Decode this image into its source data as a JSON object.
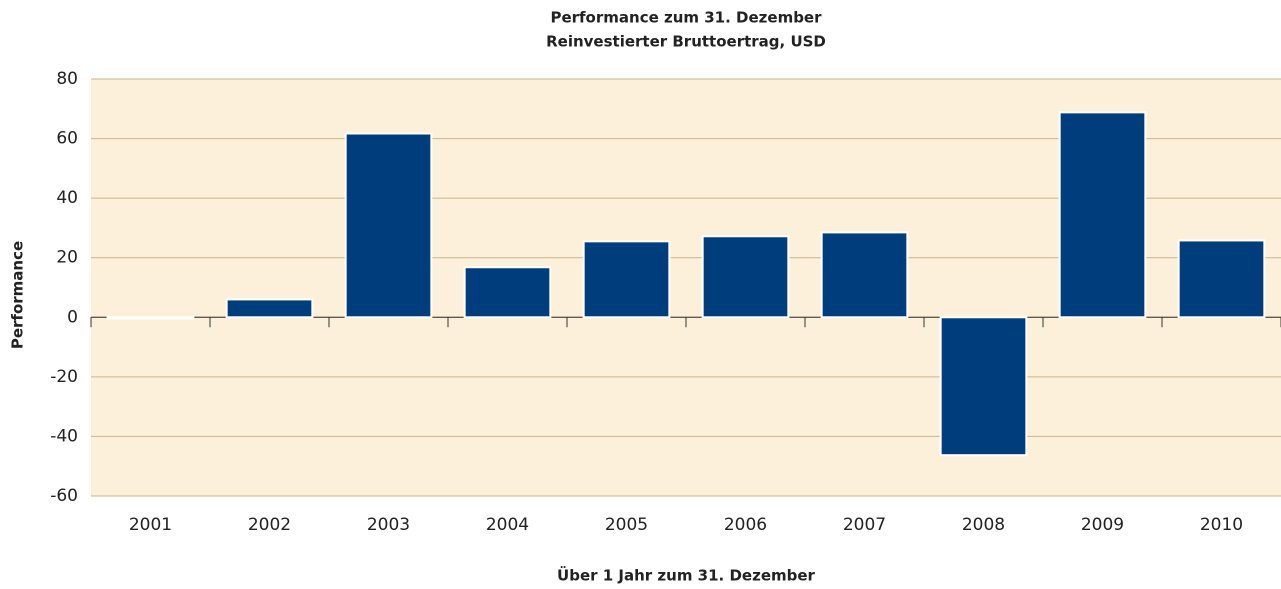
{
  "chart_data": {
    "type": "bar",
    "title": "Performance zum 31. Dezember",
    "subtitle": "Reinvestierter Bruttoertrag, USD",
    "x_label": "Über 1 Jahr zum 31. Dezember",
    "y_label": "Performance",
    "categories": [
      "2001",
      "2002",
      "2003",
      "2004",
      "2005",
      "2006",
      "2007",
      "2008",
      "2009",
      "2010"
    ],
    "values": [
      -0.4,
      6,
      61.7,
      16.8,
      25.5,
      27.2,
      28.5,
      -46.3,
      68.8,
      25.8
    ],
    "color": "#003d7c",
    "ylim": [
      -60,
      80
    ],
    "yticks": [
      -60,
      -40,
      -20,
      0,
      20,
      40,
      60,
      80
    ],
    "grid": true
  }
}
